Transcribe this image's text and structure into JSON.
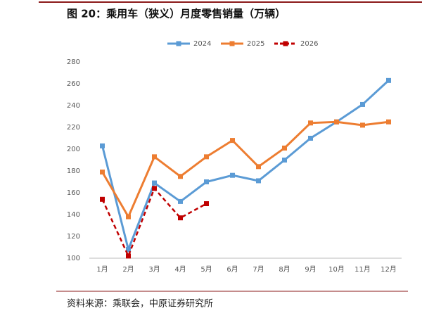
{
  "title": "图 20：乘用车（狭义）月度零售销量（万辆）",
  "source": "资料来源：乘联会，中原证券研究所",
  "chart_data": {
    "type": "line",
    "categories": [
      "1月",
      "2月",
      "3月",
      "4月",
      "5月",
      "6月",
      "7月",
      "8月",
      "9月",
      "10月",
      "11月",
      "12月"
    ],
    "series": [
      {
        "name": "2024",
        "color": "#5b9bd5",
        "dashed": false,
        "values": [
          203,
          108,
          169,
          152,
          170,
          176,
          171,
          190,
          210,
          225,
          241,
          263
        ]
      },
      {
        "name": "2025",
        "color": "#ed7d31",
        "dashed": false,
        "values": [
          179,
          138,
          193,
          175,
          193,
          208,
          184,
          201,
          224,
          225,
          222,
          225
        ]
      },
      {
        "name": "2026",
        "color": "#c00000",
        "dashed": true,
        "values": [
          154,
          102,
          164,
          137,
          150,
          null,
          null,
          null,
          null,
          null,
          null,
          null
        ]
      }
    ],
    "ylim": [
      100,
      280
    ],
    "yticks": [
      100,
      120,
      140,
      160,
      180,
      200,
      220,
      240,
      260,
      280
    ],
    "grid": false,
    "legend": "top"
  }
}
